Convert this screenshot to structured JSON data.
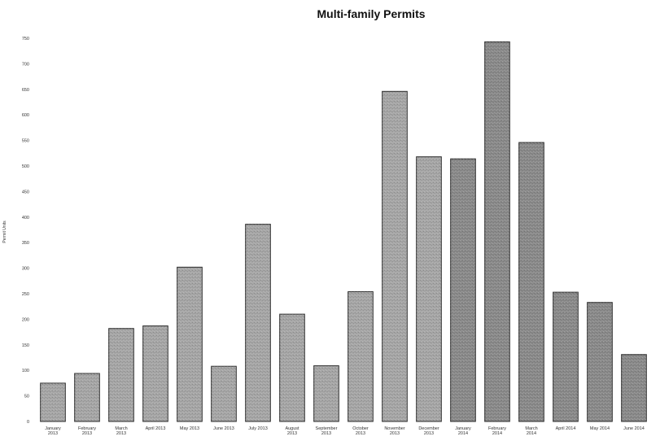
{
  "chart_data": {
    "type": "bar",
    "title": "Multi-family Permits",
    "xlabel": "",
    "ylabel": "Permit Units",
    "ylim": [
      0,
      750
    ],
    "yticks": [
      0,
      50,
      100,
      150,
      200,
      250,
      300,
      350,
      400,
      450,
      500,
      550,
      600,
      650,
      700,
      750
    ],
    "grid": false,
    "categories": [
      [
        "January",
        "2013"
      ],
      [
        "February",
        "2013"
      ],
      [
        "March",
        "2013"
      ],
      [
        "April 2013"
      ],
      [
        "May 2013"
      ],
      [
        "June 2013"
      ],
      [
        "July 2013"
      ],
      [
        "August",
        "2013"
      ],
      [
        "September",
        "2013"
      ],
      [
        "October",
        "2013"
      ],
      [
        "November",
        "2013"
      ],
      [
        "December",
        "2013"
      ],
      [
        "January",
        "2014"
      ],
      [
        "February",
        "2014"
      ],
      [
        "March",
        "2014"
      ],
      [
        "April 2014"
      ],
      [
        "May 2014"
      ],
      [
        "June 2014"
      ]
    ],
    "values": [
      75,
      94,
      182,
      187,
      302,
      108,
      386,
      210,
      109,
      254,
      646,
      518,
      514,
      743,
      546,
      253,
      233,
      131
    ],
    "colors": {
      "bar_2013": "#a6a6a6",
      "bar_2014": "#8a8a8a",
      "bar_edge": "#2f2f2f"
    }
  }
}
